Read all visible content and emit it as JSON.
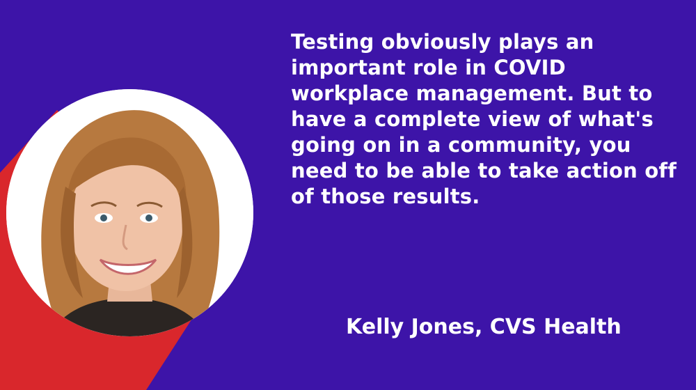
{
  "quote": {
    "text": "Testing obviously plays an important role in COVID workplace management. But to have a complete view of what's going on in a community, you need to be able to take action off of those results."
  },
  "attribution": {
    "text": "Kelly Jones, CVS Health"
  },
  "colors": {
    "background": "#3d14a8",
    "accent": "#d9272c",
    "text": "#ffffff",
    "circle_border": "#ffffff"
  },
  "portrait": {
    "icon": "person-portrait-icon"
  }
}
